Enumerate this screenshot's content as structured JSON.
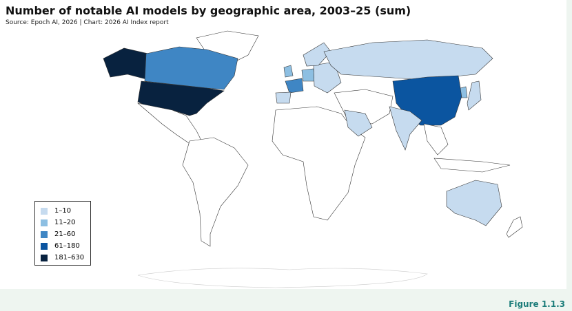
{
  "header": {
    "title": "Number of notable AI models by geographic area, 2003–25 (sum)",
    "source": "Source: Epoch AI, 2026 | Chart: 2026 AI Index report"
  },
  "legend": {
    "items": [
      {
        "label": "1–10",
        "color": "#c6dbef"
      },
      {
        "label": "11–20",
        "color": "#8dbfe2"
      },
      {
        "label": "21–60",
        "color": "#3f86c4"
      },
      {
        "label": "61–180",
        "color": "#0b55a0"
      },
      {
        "label": "181–630",
        "color": "#08223f"
      }
    ]
  },
  "footer": {
    "figure": "Figure 1.1.3"
  }
}
